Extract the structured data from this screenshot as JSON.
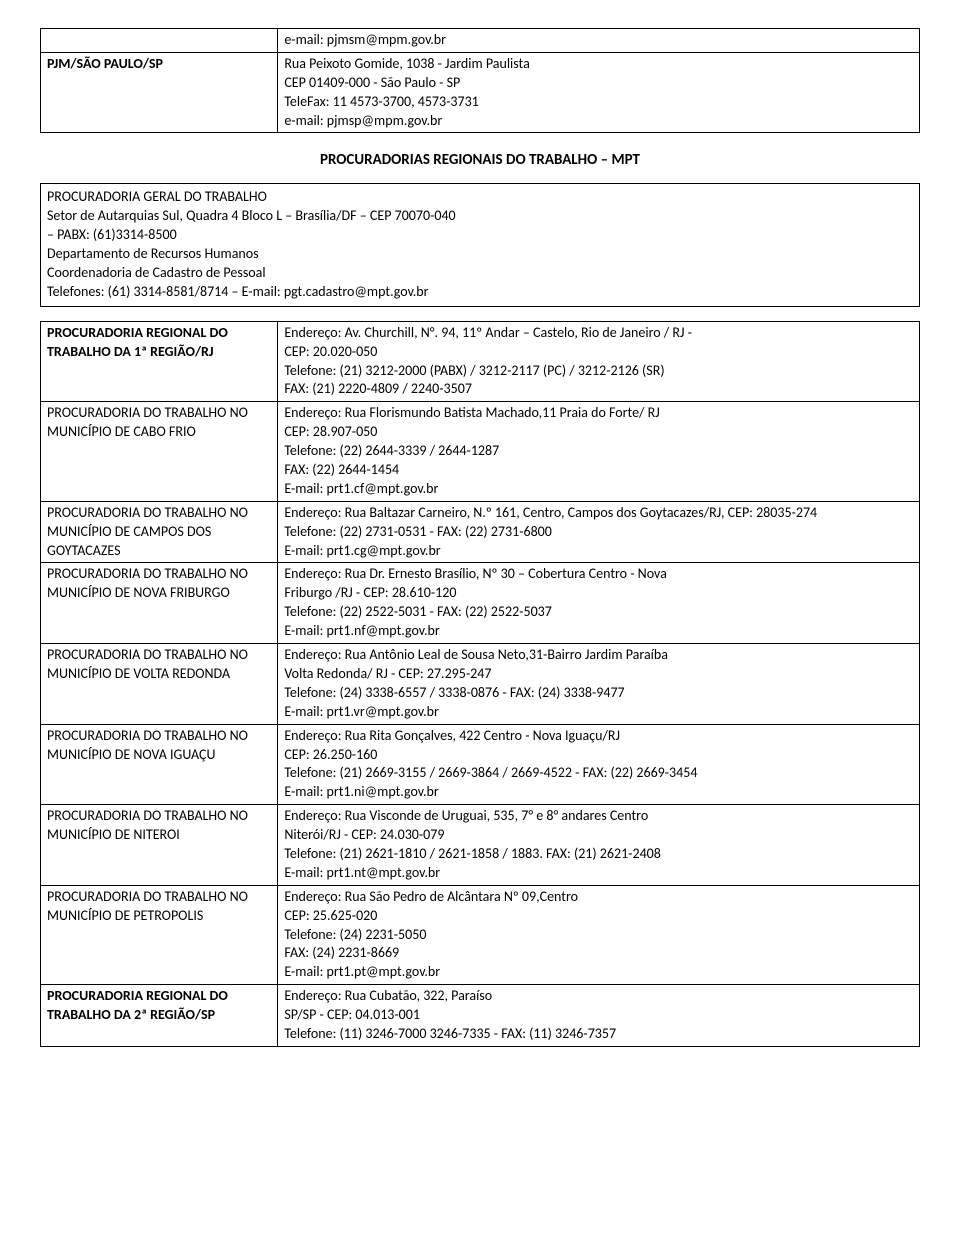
{
  "top_table": {
    "rows": [
      {
        "label": "",
        "content": "e-mail: pjmsm@mpm.gov.br"
      },
      {
        "label": "PJM/SÃO PAULO/SP",
        "content": "Rua Peixoto Gomide, 1038 - Jardim Paulista\nCEP 01409-000 - São Paulo - SP\nTeleFax: 11 4573-3700, 4573-3731\ne-mail: pjmsp@mpm.gov.br"
      }
    ]
  },
  "section_heading": "PROCURADORIAS REGIONAIS DO TRABALHO – MPT",
  "geral_block": "PROCURADORIA GERAL DO TRABALHO\nSetor de Autarquias Sul, Quadra 4 Bloco L – Brasília/DF – CEP 70070-040\n– PABX: (61)3314-8500\nDepartamento de Recursos Humanos\nCoordenadoria de Cadastro de Pessoal\nTelefones: (61) 3314-8581/8714 – E-mail: pgt.cadastro@mpt.gov.br",
  "entries": [
    {
      "label": "PROCURADORIA REGIONAL DO TRABALHO DA 1ª REGIÃO/RJ",
      "bold": true,
      "content": "Endereço: Av. Churchill, N°. 94, 11º Andar – Castelo, Rio de Janeiro / RJ -\nCEP: 20.020-050\nTelefone: (21) 3212-2000 (PABX) / 3212-2117 (PC) / 3212-2126 (SR)\nFAX: (21) 2220-4809 / 2240-3507"
    },
    {
      "label": "PROCURADORIA DO TRABALHO NO MUNICÍPIO DE CABO FRIO",
      "bold": false,
      "content": "Endereço: Rua Florismundo Batista Machado,11 Praia do Forte/ RJ\nCEP: 28.907-050\nTelefone: (22) 2644-3339 / 2644-1287\nFAX: (22) 2644-1454\nE-mail: prt1.cf@mpt.gov.br"
    },
    {
      "label": "PROCURADORIA DO TRABALHO NO MUNICÍPIO DE CAMPOS DOS GOYTACAZES",
      "bold": false,
      "content": "Endereço: Rua Baltazar Carneiro, N.º 161, Centro, Campos dos Goytacazes/RJ, CEP: 28035-274\nTelefone: (22) 2731-0531 - FAX: (22) 2731-6800\nE-mail: prt1.cg@mpt.gov.br"
    },
    {
      "label": "PROCURADORIA DO TRABALHO NO MUNICÍPIO DE NOVA FRIBURGO",
      "bold": false,
      "content": "Endereço: Rua Dr. Ernesto Brasílio, Nº 30 – Cobertura Centro - Nova\nFriburgo /RJ - CEP: 28.610-120\nTelefone: (22) 2522-5031 - FAX: (22) 2522-5037\nE-mail: prt1.nf@mpt.gov.br"
    },
    {
      "label": "PROCURADORIA DO TRABALHO NO MUNICÍPIO DE VOLTA REDONDA",
      "bold": false,
      "content": "Endereço: Rua Antônio Leal de Sousa Neto,31-Bairro Jardim Paraíba\nVolta Redonda/ RJ - CEP: 27.295-247\nTelefone: (24) 3338-6557 / 3338-0876 - FAX: (24) 3338-9477\nE-mail: prt1.vr@mpt.gov.br"
    },
    {
      "label": "PROCURADORIA DO TRABALHO NO MUNICÍPIO DE NOVA IGUAÇU",
      "bold": false,
      "content": "Endereço: Rua Rita Gonçalves, 422 Centro - Nova Iguaçu/RJ\nCEP: 26.250-160\nTelefone: (21) 2669-3155 / 2669-3864 / 2669-4522 - FAX: (22) 2669-3454\nE-mail: prt1.ni@mpt.gov.br"
    },
    {
      "label": "PROCURADORIA DO TRABALHO NO MUNICÍPIO DE NITEROI",
      "bold": false,
      "content": "Endereço: Rua Visconde de Uruguai, 535, 7° e 8° andares Centro\nNiterói/RJ - CEP: 24.030-079\nTelefone: (21) 2621-1810 / 2621-1858 / 1883. FAX: (21) 2621-2408\nE-mail: prt1.nt@mpt.gov.br"
    },
    {
      "label": "PROCURADORIA DO TRABALHO NO MUNICÍPIO DE PETROPOLIS",
      "bold": false,
      "content": "Endereço: Rua São Pedro de Alcântara Nº 09,Centro\nCEP: 25.625-020\nTelefone: (24) 2231-5050\nFAX: (24) 2231-8669\nE-mail: prt1.pt@mpt.gov.br"
    },
    {
      "label": "PROCURADORIA REGIONAL DO TRABALHO DA 2ª REGIÃO/SP",
      "bold": true,
      "content": "Endereço: Rua Cubatão, 322, Paraíso\nSP/SP - CEP: 04.013-001\nTelefone: (11) 3246-7000 3246-7335 - FAX: (11) 3246-7357"
    }
  ]
}
